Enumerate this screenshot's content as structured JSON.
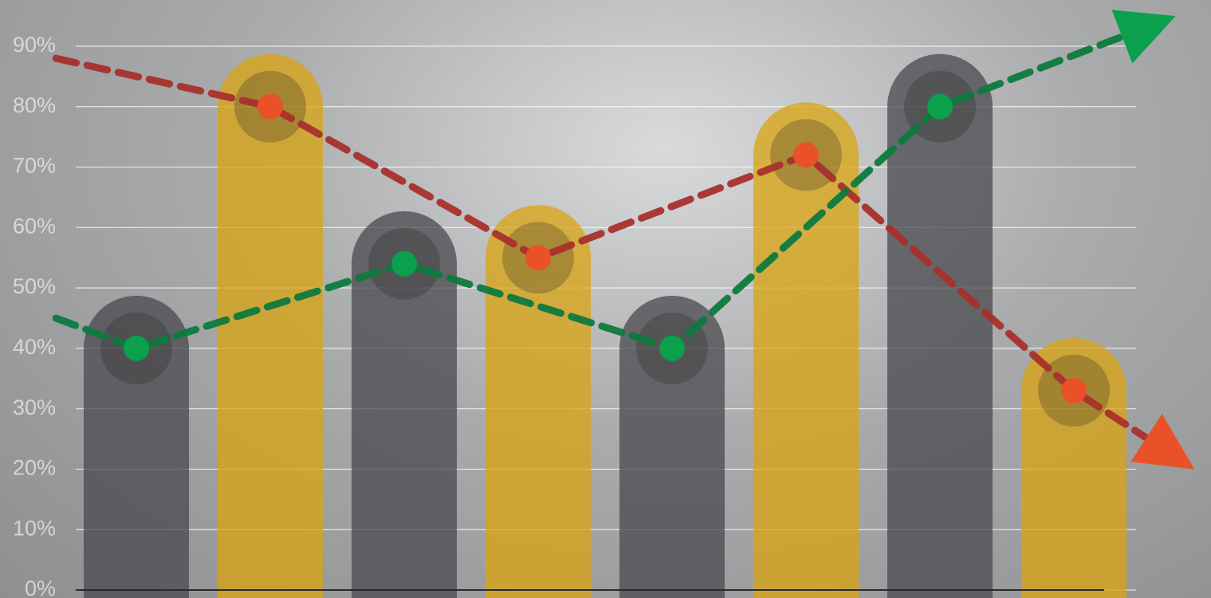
{
  "chart_data": {
    "type": "bar",
    "categories": [
      null,
      null,
      null,
      null,
      null,
      null,
      null,
      null
    ],
    "values": [
      40,
      80,
      54,
      55,
      40,
      72,
      80,
      33
    ],
    "colors": [
      "#4a4a4d",
      "#d9a410",
      "#4a4a4d",
      "#d9a410",
      "#4a4a4d",
      "#d9a410",
      "#4a4a4d",
      "#d9a410"
    ],
    "ylim": [
      0,
      90
    ],
    "yticks": [
      {
        "value": 0,
        "label": "0%"
      },
      {
        "value": 10,
        "label": "10%"
      },
      {
        "value": 20,
        "label": "20%"
      },
      {
        "value": 30,
        "label": "30%"
      },
      {
        "value": 40,
        "label": "40%"
      },
      {
        "value": 50,
        "label": "50%"
      },
      {
        "value": 60,
        "label": "60%"
      },
      {
        "value": 70,
        "label": "70%"
      },
      {
        "value": 80,
        "label": "80%"
      },
      {
        "value": 90,
        "label": "90%"
      }
    ],
    "grid": true,
    "lines": [
      {
        "type": "line",
        "x": [
          -0.6,
          1,
          3,
          5,
          7,
          7.9
        ],
        "values": [
          88,
          80,
          55,
          72,
          33,
          20
        ],
        "color": "#a8302c",
        "marker_color": "#ea5128"
      },
      {
        "type": "line",
        "x": [
          -0.6,
          0,
          2,
          4,
          6,
          7.76
        ],
        "values": [
          45,
          40,
          54,
          40,
          80,
          95
        ],
        "color": "#0d7a3e",
        "marker_color": "#0aa04c"
      }
    ]
  }
}
